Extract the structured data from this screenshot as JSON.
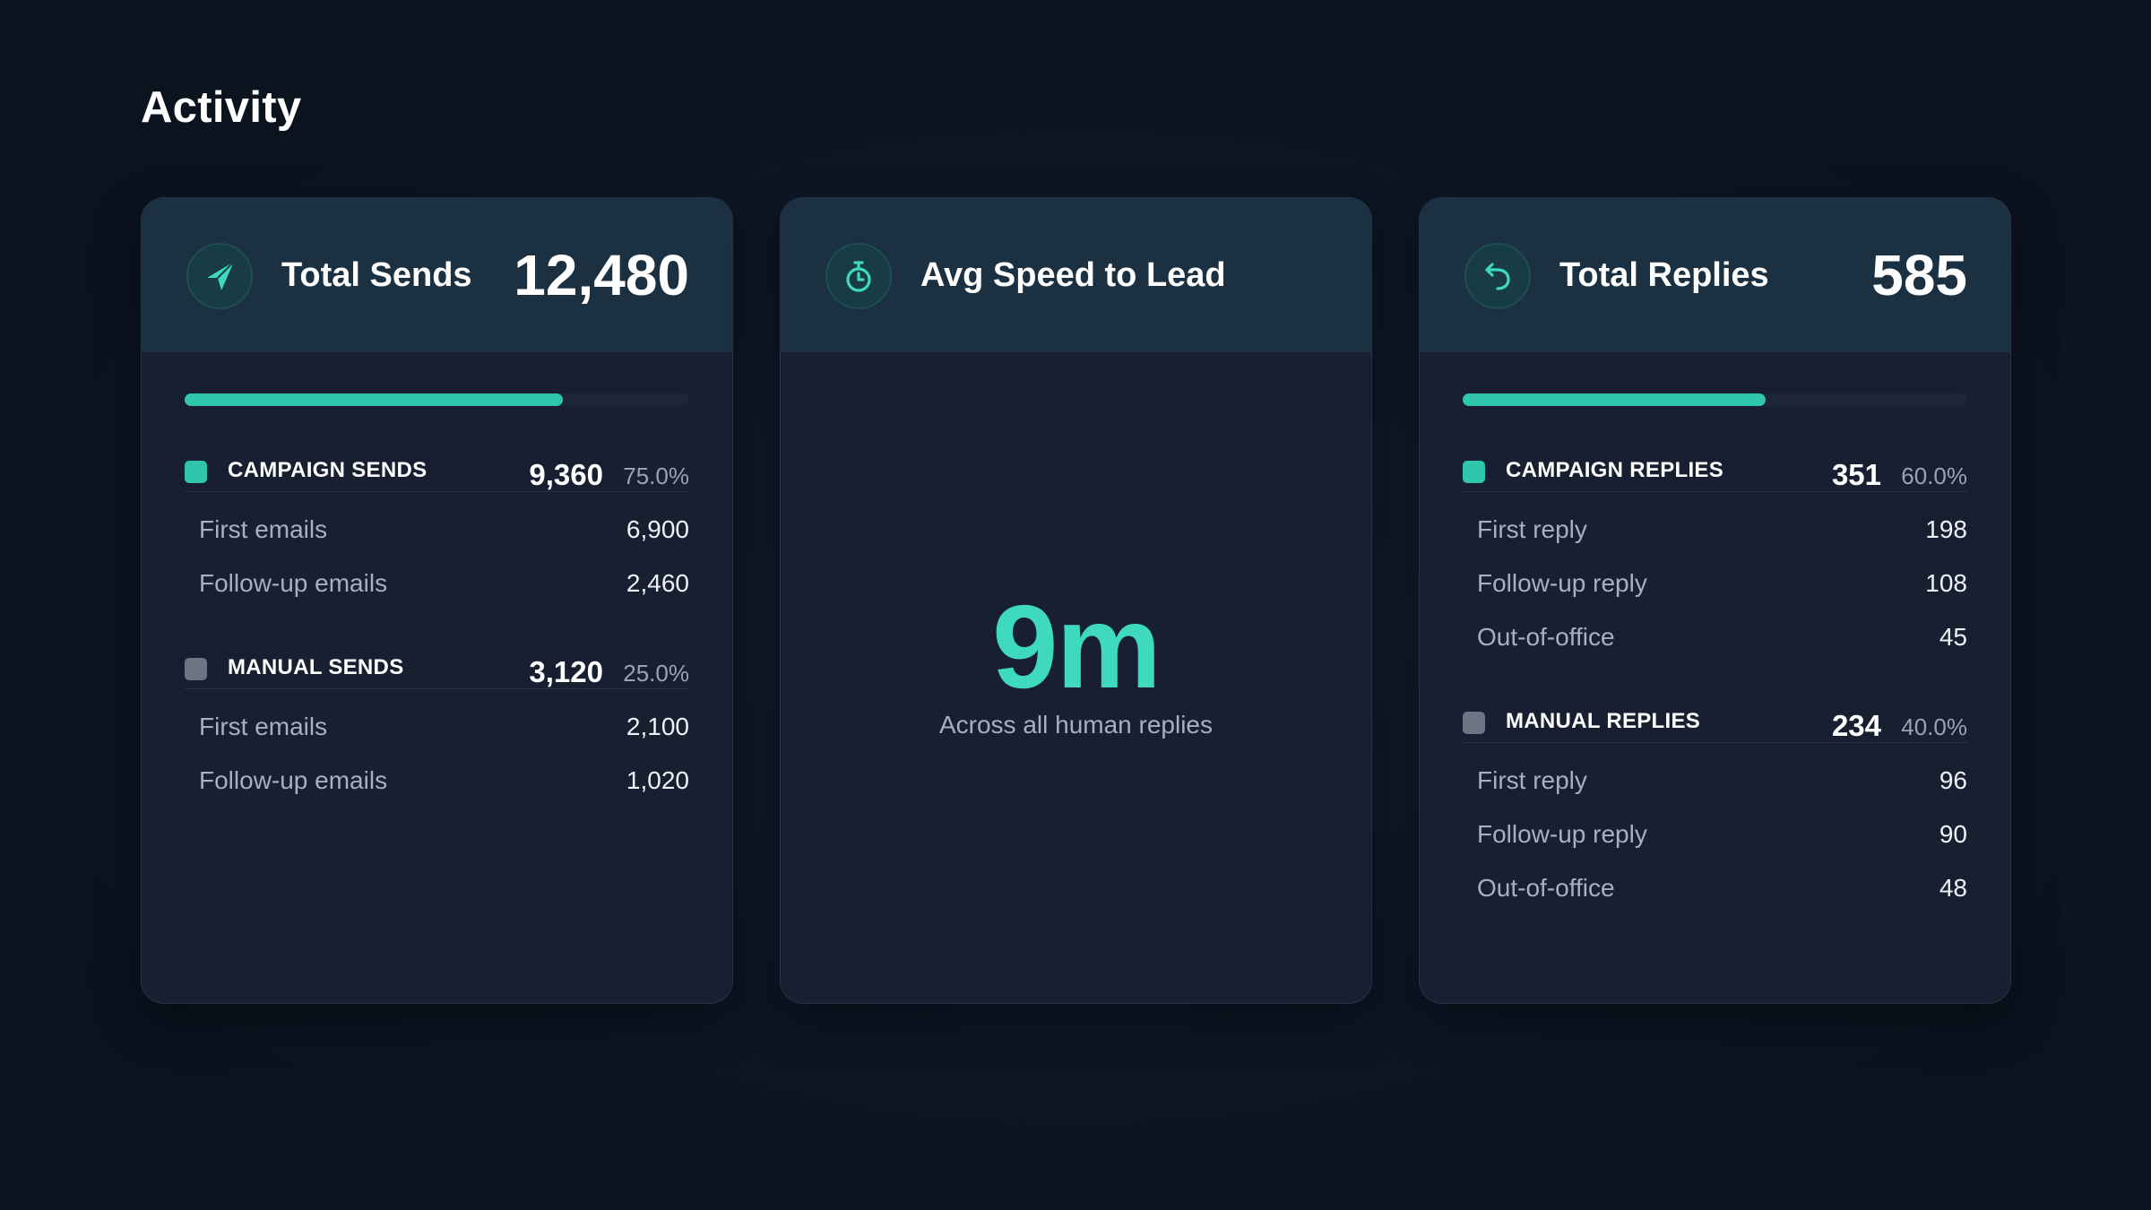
{
  "page": {
    "title": "Activity"
  },
  "cards": {
    "sends": {
      "icon": "paper-plane-icon",
      "title": "Total Sends",
      "value": "12,480",
      "progress": 0.75,
      "sections": [
        {
          "label": "CAMPAIGN SENDS",
          "value": "9,360",
          "pct": "75.0%",
          "color": "#2ec7ae",
          "items": [
            {
              "label": "First emails",
              "value": "6,900"
            },
            {
              "label": "Follow-up emails",
              "value": "2,460"
            }
          ]
        },
        {
          "label": "MANUAL SENDS",
          "value": "3,120",
          "pct": "25.0%",
          "color": "#6d7585",
          "items": [
            {
              "label": "First emails",
              "value": "2,100"
            },
            {
              "label": "Follow-up emails",
              "value": "1,020"
            }
          ]
        }
      ]
    },
    "speed": {
      "icon": "stopwatch-icon",
      "title": "Avg Speed to Lead",
      "value": "9m",
      "caption": "Across all human replies"
    },
    "replies": {
      "icon": "reply-arrow-icon",
      "title": "Total Replies",
      "value": "585",
      "progress": 0.6,
      "sections": [
        {
          "label": "CAMPAIGN REPLIES",
          "value": "351",
          "pct": "60.0%",
          "color": "#2ec7ae",
          "items": [
            {
              "label": "First reply",
              "value": "198"
            },
            {
              "label": "Follow-up reply",
              "value": "108"
            },
            {
              "label": "Out-of-office",
              "value": "45"
            }
          ]
        },
        {
          "label": "MANUAL REPLIES",
          "value": "234",
          "pct": "40.0%",
          "color": "#6d7585",
          "items": [
            {
              "label": "First reply",
              "value": "96"
            },
            {
              "label": "Follow-up reply",
              "value": "90"
            },
            {
              "label": "Out-of-office",
              "value": "48"
            }
          ]
        }
      ]
    }
  }
}
